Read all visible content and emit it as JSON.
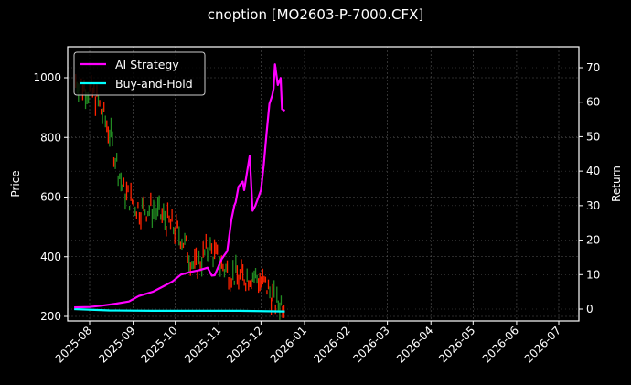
{
  "title": "cnoption [MO2603-P-7000.CFX]",
  "colors": {
    "background": "#000000",
    "ai_strategy": "#ff00ff",
    "buy_and_hold": "#00ffff",
    "candle_up": "#228b22",
    "candle_down": "#ff2200",
    "grid": "#555555",
    "axis": "#ffffff"
  },
  "chart_data": {
    "type": "line",
    "title": "cnoption [MO2603-P-7000.CFX]",
    "xlabel": "",
    "ylabel": "Price",
    "y2label": "Return",
    "x_ticks": [
      "2025-08",
      "2025-09",
      "2025-10",
      "2025-11",
      "2025-12",
      "2026-01",
      "2026-02",
      "2026-03",
      "2026-04",
      "2026-05",
      "2026-06",
      "2026-07"
    ],
    "y_ticks": [
      200,
      400,
      600,
      800,
      1000
    ],
    "y2_ticks": [
      0,
      10,
      20,
      30,
      40,
      50,
      60,
      70
    ],
    "ylim": [
      183,
      1100
    ],
    "y2lim": [
      -2,
      75
    ],
    "grid": true,
    "legend_position": "upper left",
    "legend": [
      "AI Strategy",
      "Buy-and-Hold"
    ],
    "series": [
      {
        "name": "AI Strategy",
        "axis": "right",
        "x": [
          "2025-07-21",
          "2025-08-01",
          "2025-08-10",
          "2025-08-20",
          "2025-08-29",
          "2025-09-05",
          "2025-09-15",
          "2025-09-22",
          "2025-09-29",
          "2025-10-05",
          "2025-10-12",
          "2025-10-18",
          "2025-10-24",
          "2025-10-27",
          "2025-10-29",
          "2025-11-03",
          "2025-11-07",
          "2025-11-10",
          "2025-11-12",
          "2025-11-13",
          "2025-11-15",
          "2025-11-18",
          "2025-11-19",
          "2025-11-21",
          "2025-11-23",
          "2025-11-25",
          "2025-11-27",
          "2025-12-01",
          "2025-12-03",
          "2025-12-05",
          "2025-12-07",
          "2025-12-09",
          "2025-12-10",
          "2025-12-11",
          "2025-12-13",
          "2025-12-15",
          "2025-12-16",
          "2025-12-18"
        ],
        "values": [
          0.5,
          0.6,
          1.0,
          1.6,
          2.2,
          3.8,
          5.0,
          6.5,
          8.0,
          10.0,
          10.8,
          11.3,
          12.0,
          9.7,
          9.8,
          14.5,
          16.8,
          26.0,
          30.0,
          31.0,
          35.5,
          37.0,
          34.5,
          39.5,
          44.5,
          28.5,
          30.0,
          34.5,
          42.0,
          51.0,
          59.5,
          62.0,
          64.0,
          71.0,
          65.0,
          67.0,
          58.0,
          57.5
        ]
      },
      {
        "name": "Buy-and-Hold",
        "axis": "right",
        "x": [
          "2025-07-21",
          "2025-08-15",
          "2025-09-15",
          "2025-10-15",
          "2025-11-15",
          "2025-12-18"
        ],
        "values": [
          0.0,
          -0.4,
          -0.5,
          -0.5,
          -0.5,
          -0.7
        ]
      },
      {
        "name": "Price (OHLC candles)",
        "axis": "left",
        "approx_close_trend": {
          "x": [
            "2025-07-22",
            "2025-08-05",
            "2025-08-15",
            "2025-08-25",
            "2025-09-05",
            "2025-09-15",
            "2025-09-25",
            "2025-10-05",
            "2025-10-15",
            "2025-10-25",
            "2025-11-05",
            "2025-11-15",
            "2025-11-25",
            "2025-12-05",
            "2025-12-12",
            "2025-12-18"
          ],
          "values": [
            990,
            940,
            820,
            620,
            560,
            560,
            520,
            470,
            360,
            430,
            360,
            330,
            340,
            300,
            240,
            250
          ]
        }
      }
    ]
  }
}
